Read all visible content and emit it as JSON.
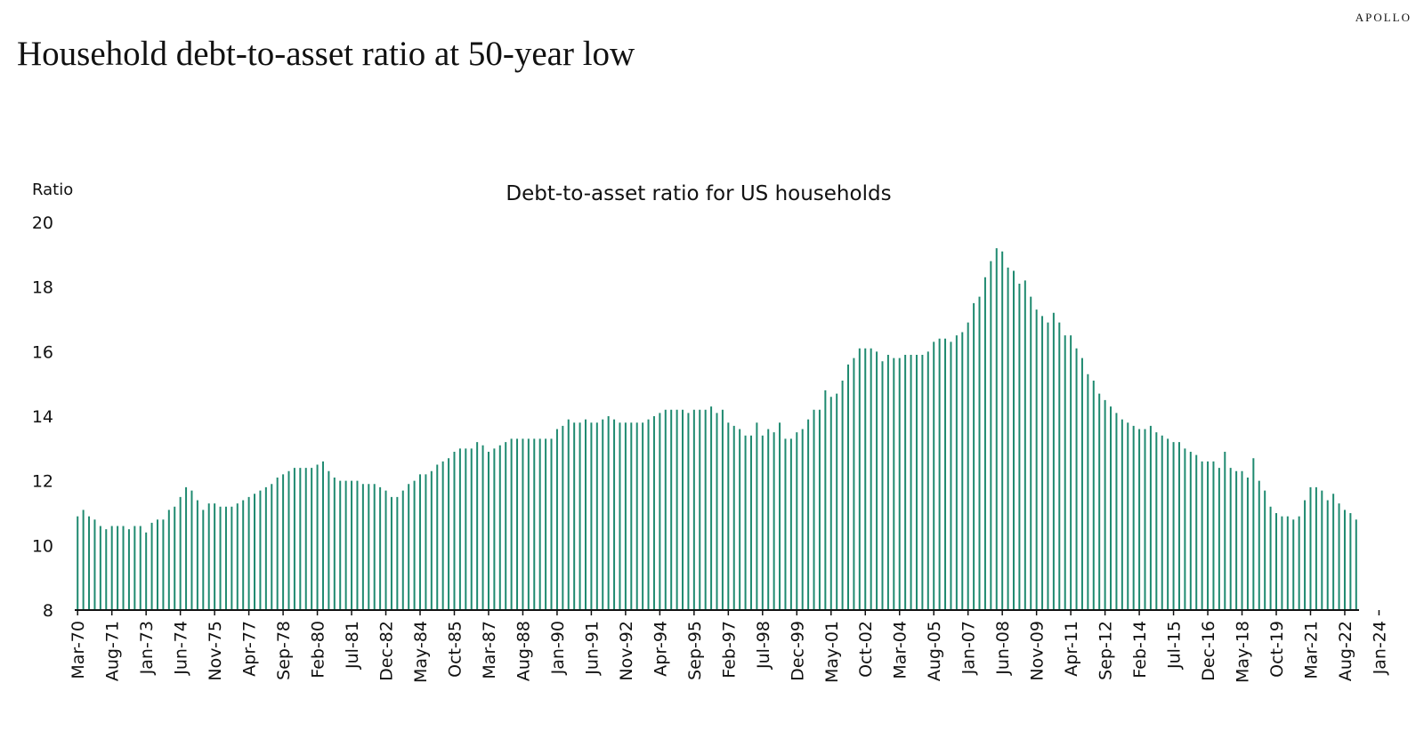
{
  "header": {
    "brand": "APOLLO",
    "title": "Household debt-to-asset ratio at 50-year low"
  },
  "chart_data": {
    "type": "bar",
    "title": "Debt-to-asset ratio for US households",
    "ylabel": "Ratio",
    "ylim": [
      8,
      20
    ],
    "yticks": [
      8,
      10,
      12,
      14,
      16,
      18,
      20
    ],
    "bar_color": "#1f8a70",
    "frequency": "quarterly",
    "x_tick_labels": [
      "Mar-70",
      "Aug-71",
      "Jan-73",
      "Jun-74",
      "Nov-75",
      "Apr-77",
      "Sep-78",
      "Feb-80",
      "Jul-81",
      "Dec-82",
      "May-84",
      "Oct-85",
      "Mar-87",
      "Aug-88",
      "Jan-90",
      "Jun-91",
      "Nov-92",
      "Apr-94",
      "Sep-95",
      "Feb-97",
      "Jul-98",
      "Dec-99",
      "May-01",
      "Oct-02",
      "Mar-04",
      "Aug-05",
      "Jan-07",
      "Jun-08",
      "Nov-09",
      "Apr-11",
      "Sep-12",
      "Feb-14",
      "Jul-15",
      "Dec-16",
      "May-18",
      "Oct-19",
      "Mar-21",
      "Aug-22",
      "Jan-24"
    ],
    "values": [
      10.9,
      11.1,
      10.9,
      10.8,
      10.6,
      10.5,
      10.6,
      10.6,
      10.6,
      10.5,
      10.6,
      10.6,
      10.4,
      10.7,
      10.8,
      10.8,
      11.1,
      11.2,
      11.5,
      11.8,
      11.7,
      11.4,
      11.1,
      11.3,
      11.3,
      11.2,
      11.2,
      11.2,
      11.3,
      11.4,
      11.5,
      11.6,
      11.7,
      11.8,
      11.9,
      12.1,
      12.2,
      12.3,
      12.4,
      12.4,
      12.4,
      12.4,
      12.5,
      12.6,
      12.3,
      12.1,
      12.0,
      12.0,
      12.0,
      12.0,
      11.9,
      11.9,
      11.9,
      11.8,
      11.7,
      11.5,
      11.5,
      11.7,
      11.9,
      12.0,
      12.2,
      12.2,
      12.3,
      12.5,
      12.6,
      12.7,
      12.9,
      13.0,
      13.0,
      13.0,
      13.2,
      13.1,
      12.9,
      13.0,
      13.1,
      13.2,
      13.3,
      13.3,
      13.3,
      13.3,
      13.3,
      13.3,
      13.3,
      13.3,
      13.6,
      13.7,
      13.9,
      13.8,
      13.8,
      13.9,
      13.8,
      13.8,
      13.9,
      14.0,
      13.9,
      13.8,
      13.8,
      13.8,
      13.8,
      13.8,
      13.9,
      14.0,
      14.1,
      14.2,
      14.2,
      14.2,
      14.2,
      14.1,
      14.2,
      14.2,
      14.2,
      14.3,
      14.1,
      14.2,
      13.8,
      13.7,
      13.6,
      13.4,
      13.4,
      13.8,
      13.4,
      13.6,
      13.5,
      13.8,
      13.3,
      13.3,
      13.5,
      13.6,
      13.9,
      14.2,
      14.2,
      14.8,
      14.6,
      14.7,
      15.1,
      15.6,
      15.8,
      16.1,
      16.1,
      16.1,
      16.0,
      15.7,
      15.9,
      15.8,
      15.8,
      15.9,
      15.9,
      15.9,
      15.9,
      16.0,
      16.3,
      16.4,
      16.4,
      16.3,
      16.5,
      16.6,
      16.9,
      17.5,
      17.7,
      18.3,
      18.8,
      19.2,
      19.1,
      18.6,
      18.5,
      18.1,
      18.2,
      17.7,
      17.3,
      17.1,
      16.9,
      17.2,
      16.9,
      16.5,
      16.5,
      16.1,
      15.8,
      15.3,
      15.1,
      14.7,
      14.5,
      14.3,
      14.1,
      13.9,
      13.8,
      13.7,
      13.6,
      13.6,
      13.7,
      13.5,
      13.4,
      13.3,
      13.2,
      13.2,
      13.0,
      12.9,
      12.8,
      12.6,
      12.6,
      12.6,
      12.4,
      12.9,
      12.4,
      12.3,
      12.3,
      12.1,
      12.7,
      12.0,
      11.7,
      11.2,
      11.0,
      10.9,
      10.9,
      10.8,
      10.9,
      11.4,
      11.8,
      11.8,
      11.7,
      11.4,
      11.6,
      11.3,
      11.1,
      11.0,
      10.8
    ]
  }
}
